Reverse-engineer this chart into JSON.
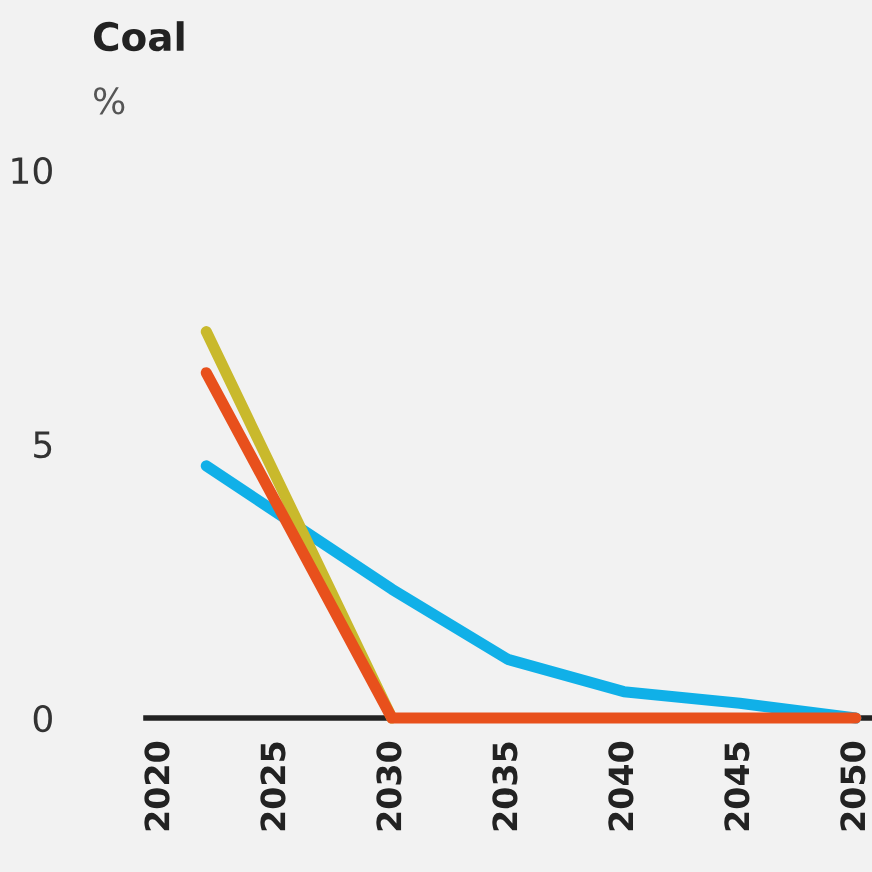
{
  "chart_data": {
    "type": "line",
    "title": "Coal",
    "ylabel": "%",
    "xlim": [
      2019.4,
      2050.7
    ],
    "xticks": [
      2020,
      2025,
      2030,
      2035,
      2040,
      2045,
      2050
    ],
    "ylim": [
      0,
      10
    ],
    "yticks": [
      0,
      5,
      10
    ],
    "grid": false,
    "legend": false,
    "marker": "none",
    "line_style": "solid",
    "series": [
      {
        "color": "#10b0e8",
        "x": [
          2022,
          2030,
          2035,
          2040,
          2045,
          2050
        ],
        "values": [
          4.6,
          2.35,
          1.07,
          0.48,
          0.27,
          0
        ]
      },
      {
        "color": "#c9b92c",
        "x": [
          2022,
          2030
        ],
        "values": [
          7.05,
          0
        ]
      },
      {
        "color": "#e8501c",
        "x": [
          2022,
          2030,
          2035,
          2040,
          2045,
          2050
        ],
        "values": [
          6.3,
          0,
          0,
          0,
          0,
          0
        ]
      }
    ]
  }
}
